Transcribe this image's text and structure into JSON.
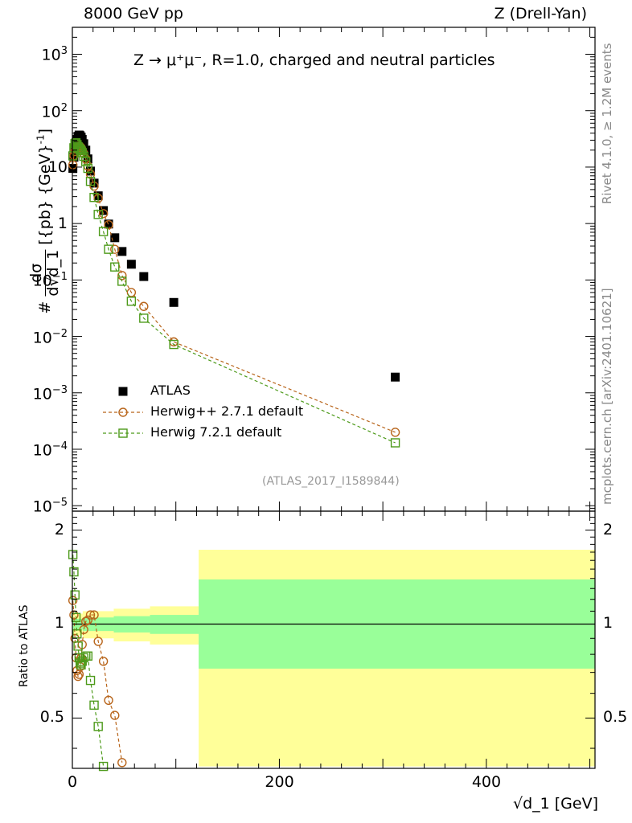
{
  "header": {
    "left": "8000 GeV pp",
    "right": "Z (Drell-Yan)"
  },
  "side_labels": {
    "rivet": "Rivet 4.1.0, ≥ 1.2M events",
    "mcplots": "mcplots.cern.ch [arXiv:2401.10621]"
  },
  "colors": {
    "atlas": "#000000",
    "herwigpp": "#b8651b",
    "herwig7": "#4d9a1a",
    "band_inner": "#99ff99",
    "band_outer": "#ffff99"
  },
  "chart_data": [
    {
      "type": "scatter",
      "panel": "main",
      "title": "Z → μ⁺μ⁻, R=1.0, charged and neutral particles",
      "annotation": "(ATLAS_2017_I1589844)",
      "xlabel": "√d_1 [GeV]",
      "ylabel": "dσ/d√d_1 [{pb} {GeV}⁻¹]",
      "ylabel_parts": {
        "prefix": "#",
        "numerator": "dσ",
        "denominator": "d√d_1",
        "bracket": "[{pb} {GeV}",
        "exponent": "-1",
        "close": "]"
      },
      "xlim": [
        0,
        505
      ],
      "ylim": [
        8e-06,
        3000
      ],
      "yscale": "log",
      "xticks": [
        0,
        200,
        400
      ],
      "xtick_labels": [
        "0",
        "200",
        "400"
      ],
      "yticks": [
        1e-05,
        0.0001,
        0.001,
        0.01,
        0.1,
        1,
        10,
        100,
        1000
      ],
      "ytick_labels": [
        {
          "base": "10",
          "exp": "−5"
        },
        {
          "base": "10",
          "exp": "−4"
        },
        {
          "base": "10",
          "exp": "−3"
        },
        {
          "base": "10",
          "exp": "−2"
        },
        {
          "base": "10",
          "exp": "−1"
        },
        {
          "base": "1",
          "exp": ""
        },
        {
          "base": "10",
          "exp": ""
        },
        {
          "base": "10",
          "exp": "2"
        },
        {
          "base": "10",
          "exp": "3"
        }
      ],
      "legend": {
        "position": "left-middle",
        "entries": [
          "ATLAS",
          "Herwig++ 2.7.1 default",
          "Herwig 7.2.1 default"
        ]
      },
      "series": [
        {
          "name": "ATLAS",
          "marker": "filled-square",
          "x": [
            0.5,
            1.5,
            2.5,
            3.5,
            4.5,
            5.5,
            6.5,
            7.5,
            8.5,
            9.5,
            11,
            13,
            15,
            17.5,
            21,
            25,
            30,
            35,
            41,
            48,
            57,
            69,
            98,
            312
          ],
          "y": [
            9.5,
            15,
            21,
            27,
            31,
            35,
            37,
            36,
            34,
            31,
            26,
            20,
            14,
            8.5,
            5.2,
            3.1,
            1.7,
            0.98,
            0.56,
            0.32,
            0.19,
            0.115,
            0.04,
            0.0019
          ]
        },
        {
          "name": "Herwig++ 2.7.1 default",
          "marker": "open-circle",
          "x": [
            0.5,
            1.5,
            2.5,
            3.5,
            4.5,
            5.5,
            6.5,
            7.5,
            8.5,
            9.5,
            11,
            13,
            15,
            17.5,
            21,
            25,
            30,
            35,
            41,
            48,
            57,
            69,
            98,
            312
          ],
          "y": [
            11,
            16,
            19,
            21,
            22,
            23,
            23.5,
            23,
            22,
            20,
            17.5,
            14,
            10.5,
            7.5,
            4.6,
            2.8,
            1.5,
            0.95,
            0.35,
            0.12,
            0.06,
            0.034,
            0.008,
            0.0002
          ]
        },
        {
          "name": "Herwig 7.2.1 default",
          "marker": "open-square",
          "x": [
            0.5,
            1.5,
            2.5,
            3.5,
            4.5,
            5.5,
            6.5,
            7.5,
            8.5,
            9.5,
            11,
            13,
            15,
            17.5,
            21,
            25,
            30,
            35,
            41,
            48,
            57,
            69,
            98,
            312
          ],
          "y": [
            15.8,
            22,
            26,
            27,
            25,
            23,
            21.5,
            20.5,
            19.5,
            18,
            15.5,
            12.5,
            9.5,
            5.6,
            2.9,
            1.45,
            0.72,
            0.35,
            0.17,
            0.095,
            0.042,
            0.021,
            0.0072,
            0.00013
          ]
        }
      ]
    },
    {
      "type": "scatter",
      "panel": "ratio",
      "ylabel": "Ratio to ATLAS",
      "xlim": [
        0,
        505
      ],
      "ylim": [
        0.345,
        2.3
      ],
      "reference_line": 1,
      "yticks": [
        0.5,
        1,
        2
      ],
      "ytick_labels": [
        "0.5",
        "1",
        "2"
      ],
      "uncertainty_bands": [
        {
          "x_from": 0,
          "x_to": 10,
          "inner": [
            0.96,
            1.04
          ],
          "outer": [
            0.92,
            1.08
          ]
        },
        {
          "x_from": 10,
          "x_to": 40,
          "inner": [
            0.95,
            1.05
          ],
          "outer": [
            0.9,
            1.1
          ]
        },
        {
          "x_from": 40,
          "x_to": 75,
          "inner": [
            0.94,
            1.06
          ],
          "outer": [
            0.88,
            1.12
          ]
        },
        {
          "x_from": 75,
          "x_to": 122,
          "inner": [
            0.93,
            1.07
          ],
          "outer": [
            0.86,
            1.14
          ]
        },
        {
          "x_from": 122,
          "x_to": 505,
          "inner": [
            0.72,
            1.39
          ],
          "outer": [
            0.35,
            1.73
          ]
        }
      ],
      "series": [
        {
          "name": "Herwig++ 2.7.1 default",
          "x": [
            0.5,
            1.5,
            2.5,
            3.5,
            4.5,
            5.5,
            6.5,
            7.5,
            8.5,
            9.5,
            11,
            13,
            15,
            17.5,
            21,
            25,
            30,
            35,
            41,
            48
          ],
          "y": [
            1.19,
            1.07,
            0.9,
            0.78,
            0.71,
            0.68,
            0.69,
            0.73,
            0.78,
            0.86,
            0.96,
            1.02,
            1.03,
            1.07,
            1.07,
            0.88,
            0.76,
            0.57,
            0.51,
            0.36
          ]
        },
        {
          "name": "Herwig 7.2.1 default",
          "x": [
            0.5,
            1.5,
            2.5,
            3.5,
            4.5,
            5.5,
            6.5,
            7.5,
            8.5,
            9.5,
            11,
            13,
            15,
            17.5,
            21,
            25,
            30
          ],
          "y": [
            1.67,
            1.47,
            1.24,
            1.05,
            0.93,
            0.85,
            0.78,
            0.75,
            0.74,
            0.76,
            0.78,
            0.79,
            0.79,
            0.66,
            0.55,
            0.47,
            0.35
          ]
        }
      ]
    }
  ]
}
